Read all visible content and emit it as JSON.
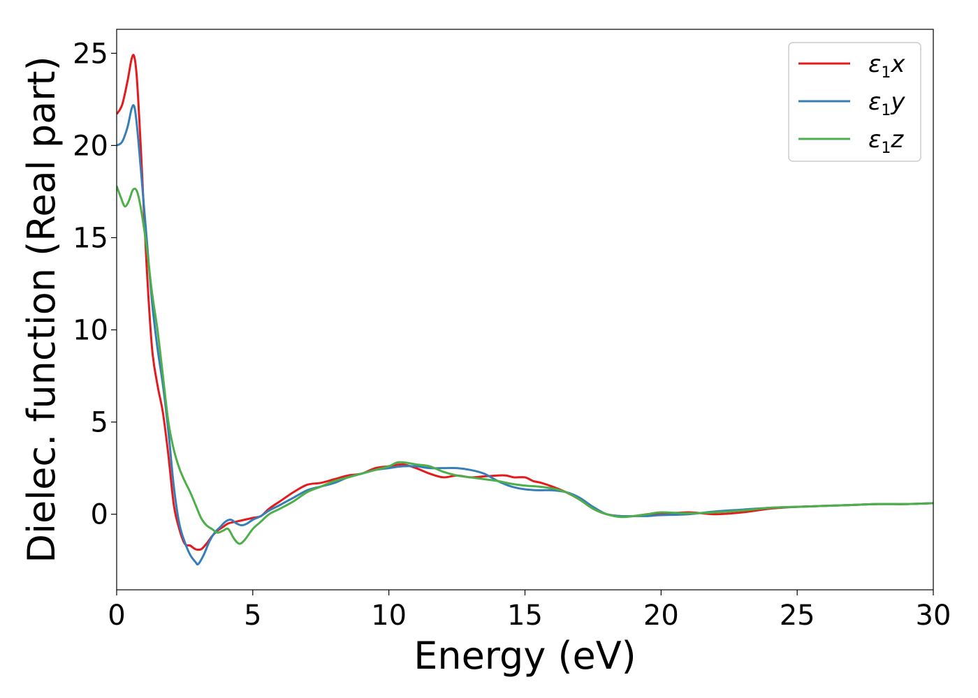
{
  "chart_data": {
    "type": "line",
    "xlabel": "Energy (eV)",
    "ylabel": "Dielec. function (Real part)",
    "xlim": [
      0,
      30
    ],
    "ylim": [
      -4.1,
      26.3
    ],
    "xticks": [
      0,
      5,
      10,
      15,
      20,
      25,
      30
    ],
    "yticks": [
      0,
      5,
      10,
      15,
      20,
      25
    ],
    "grid": false,
    "legend_position": "top-right",
    "series": [
      {
        "name": "ε1x",
        "legend_base": "ε",
        "legend_sub": "1",
        "legend_suffix": "x",
        "color": "#e41a1c",
        "x": [
          0,
          0.2,
          0.4,
          0.55,
          0.65,
          0.75,
          0.9,
          1.1,
          1.3,
          1.5,
          1.7,
          1.9,
          2.1,
          2.3,
          2.5,
          2.7,
          2.9,
          3.1,
          3.3,
          3.5,
          3.7,
          3.9,
          4.1,
          4.4,
          4.7,
          5.0,
          5.3,
          5.6,
          6.0,
          6.5,
          7.0,
          7.5,
          8.0,
          8.5,
          9.0,
          9.5,
          10.0,
          10.5,
          11.0,
          11.5,
          12.0,
          12.5,
          13.0,
          13.5,
          14.0,
          14.3,
          14.6,
          15.0,
          15.3,
          15.6,
          16.0,
          16.5,
          17.0,
          17.5,
          18.0,
          18.5,
          19.0,
          19.5,
          20.0,
          21.0,
          22.0,
          23.0,
          24.0,
          25.0,
          26.0,
          27.0,
          28.0,
          29.0,
          30.0
        ],
        "y": [
          21.7,
          22.2,
          23.5,
          24.7,
          24.8,
          23.5,
          19.5,
          13.5,
          9.0,
          7.0,
          5.5,
          3.2,
          0.5,
          -0.8,
          -1.6,
          -1.7,
          -1.9,
          -1.9,
          -1.6,
          -1.2,
          -0.9,
          -0.7,
          -0.5,
          -0.4,
          -0.3,
          -0.2,
          -0.1,
          0.3,
          0.7,
          1.2,
          1.6,
          1.7,
          1.9,
          2.1,
          2.2,
          2.5,
          2.6,
          2.7,
          2.5,
          2.2,
          2.0,
          2.1,
          2.0,
          2.05,
          2.1,
          2.1,
          2.0,
          2.0,
          1.8,
          1.7,
          1.5,
          1.2,
          0.8,
          0.3,
          0.0,
          -0.1,
          -0.1,
          0.0,
          0.0,
          0.1,
          0.0,
          0.1,
          0.3,
          0.4,
          0.45,
          0.5,
          0.55,
          0.55,
          0.6
        ]
      },
      {
        "name": "ε1y",
        "legend_base": "ε",
        "legend_sub": "1",
        "legend_suffix": "y",
        "color": "#377eb8",
        "x": [
          0,
          0.2,
          0.4,
          0.55,
          0.65,
          0.75,
          0.9,
          1.1,
          1.3,
          1.5,
          1.7,
          1.9,
          2.1,
          2.3,
          2.5,
          2.7,
          2.9,
          3.0,
          3.2,
          3.4,
          3.6,
          3.8,
          4.0,
          4.2,
          4.4,
          4.6,
          4.8,
          5.0,
          5.3,
          5.6,
          6.0,
          6.5,
          7.0,
          7.5,
          8.0,
          8.5,
          9.0,
          9.5,
          10.0,
          10.5,
          11.0,
          11.5,
          12.0,
          12.5,
          13.0,
          13.5,
          14.0,
          14.5,
          15.0,
          15.5,
          16.0,
          16.5,
          17.0,
          17.5,
          18.0,
          18.5,
          19.0,
          19.5,
          20.0,
          21.0,
          22.0,
          23.0,
          24.0,
          25.0,
          26.0,
          27.0,
          28.0,
          29.0,
          30.0
        ],
        "y": [
          20.0,
          20.2,
          21.0,
          22.0,
          22.1,
          21.0,
          18.5,
          15.0,
          11.5,
          9.0,
          7.0,
          4.5,
          1.5,
          -0.5,
          -1.5,
          -2.2,
          -2.6,
          -2.7,
          -2.2,
          -1.5,
          -1.0,
          -0.7,
          -0.4,
          -0.3,
          -0.5,
          -0.6,
          -0.5,
          -0.3,
          -0.1,
          0.2,
          0.5,
          0.9,
          1.3,
          1.5,
          1.7,
          2.0,
          2.2,
          2.4,
          2.5,
          2.6,
          2.6,
          2.5,
          2.5,
          2.5,
          2.4,
          2.2,
          1.8,
          1.5,
          1.35,
          1.3,
          1.3,
          1.2,
          0.9,
          0.4,
          0.0,
          -0.1,
          -0.1,
          -0.1,
          -0.05,
          0.0,
          0.15,
          0.25,
          0.35,
          0.4,
          0.45,
          0.5,
          0.55,
          0.55,
          0.6
        ]
      },
      {
        "name": "ε1z",
        "legend_base": "ε",
        "legend_sub": "1",
        "legend_suffix": "z",
        "color": "#4daf4a",
        "x": [
          0,
          0.15,
          0.3,
          0.45,
          0.6,
          0.75,
          0.9,
          1.1,
          1.3,
          1.5,
          1.7,
          1.9,
          2.1,
          2.3,
          2.5,
          2.7,
          2.9,
          3.1,
          3.3,
          3.5,
          3.7,
          3.9,
          4.1,
          4.3,
          4.5,
          4.7,
          5.0,
          5.3,
          5.6,
          6.0,
          6.5,
          7.0,
          7.5,
          8.0,
          8.5,
          9.0,
          9.5,
          10.0,
          10.3,
          10.6,
          11.0,
          11.5,
          12.0,
          12.5,
          13.0,
          13.5,
          14.0,
          14.5,
          15.0,
          15.5,
          16.0,
          16.5,
          17.0,
          17.5,
          18.0,
          18.5,
          19.0,
          19.5,
          20.0,
          21.0,
          22.0,
          23.0,
          24.0,
          25.0,
          26.0,
          27.0,
          28.0,
          29.0,
          30.0
        ],
        "y": [
          17.8,
          17.2,
          16.7,
          17.0,
          17.6,
          17.5,
          16.5,
          14.5,
          12.0,
          10.0,
          7.5,
          5.0,
          3.5,
          2.5,
          1.8,
          1.2,
          0.5,
          -0.2,
          -0.6,
          -0.8,
          -1.0,
          -0.9,
          -0.8,
          -1.3,
          -1.6,
          -1.4,
          -0.8,
          -0.4,
          0.0,
          0.3,
          0.7,
          1.2,
          1.5,
          1.8,
          2.0,
          2.2,
          2.4,
          2.6,
          2.8,
          2.8,
          2.7,
          2.6,
          2.3,
          2.1,
          2.0,
          1.9,
          1.8,
          1.65,
          1.55,
          1.5,
          1.4,
          1.2,
          0.8,
          0.3,
          0.0,
          -0.15,
          -0.1,
          0.0,
          0.1,
          0.05,
          0.1,
          0.2,
          0.35,
          0.4,
          0.45,
          0.5,
          0.55,
          0.55,
          0.6
        ]
      }
    ]
  }
}
